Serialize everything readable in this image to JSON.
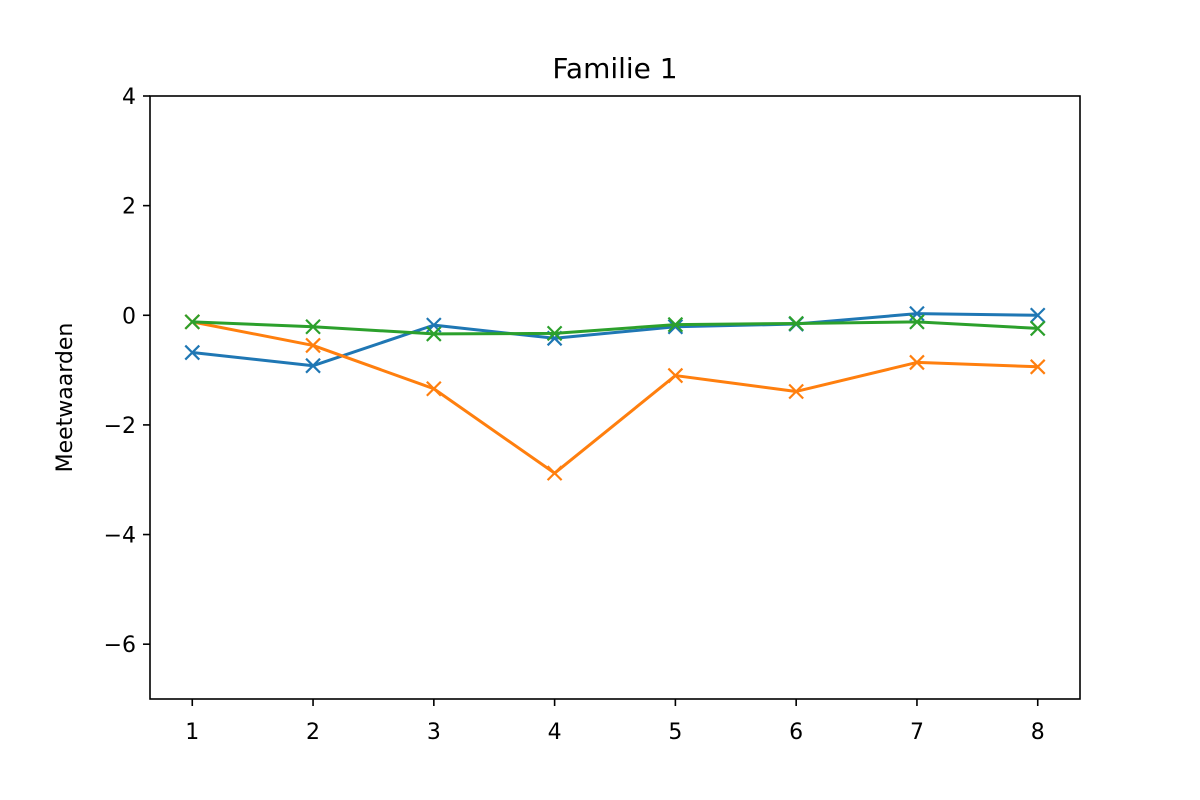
{
  "chart_data": {
    "type": "line",
    "title": "Familie 1",
    "xlabel": "",
    "ylabel": "Meetwaarden",
    "x": [
      1,
      2,
      3,
      4,
      5,
      6,
      7,
      8
    ],
    "xlim": [
      0.65,
      8.35
    ],
    "ylim": [
      -7,
      4
    ],
    "xticks": [
      1,
      2,
      3,
      4,
      5,
      6,
      7,
      8
    ],
    "yticks": [
      -6,
      -4,
      -2,
      0,
      2,
      4
    ],
    "ytick_labels": [
      "−6",
      "−4",
      "−2",
      "0",
      "2",
      "4"
    ],
    "grid": false,
    "marker": "x",
    "series": [
      {
        "color": "#1f77b4",
        "values": [
          -0.68,
          -0.92,
          -0.18,
          -0.42,
          -0.21,
          -0.16,
          0.03,
          0.0
        ]
      },
      {
        "color": "#ff7f0e",
        "values": [
          -0.12,
          -0.55,
          -1.34,
          -2.88,
          -1.1,
          -1.39,
          -0.86,
          -0.94
        ]
      },
      {
        "color": "#2ca02c",
        "values": [
          -0.12,
          -0.21,
          -0.34,
          -0.33,
          -0.17,
          -0.15,
          -0.12,
          -0.24
        ]
      }
    ]
  }
}
